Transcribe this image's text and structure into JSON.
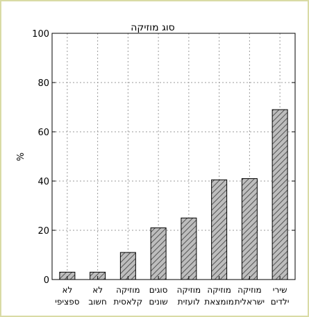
{
  "chart_data": {
    "type": "bar",
    "title": "סוג מוזיקה",
    "ylabel": "%",
    "xlabel": "",
    "ylim": [
      0,
      100
    ],
    "yticks": [
      0,
      20,
      40,
      60,
      80,
      100
    ],
    "grid": true,
    "categories": [
      [
        "לא",
        "ספציפי"
      ],
      [
        "לא",
        "חשוב"
      ],
      [
        "מוזיקה",
        "קלאסית"
      ],
      [
        "סוגים",
        "שונים"
      ],
      [
        "מוזיקה",
        "לועזית"
      ],
      [
        "מוזיקה",
        "מומצאת"
      ],
      [
        "מוזיקה",
        "ישראלית"
      ],
      [
        "שירי",
        "ילדים"
      ]
    ],
    "values": [
      3,
      3,
      11,
      21,
      25,
      40.5,
      41,
      69
    ],
    "colors": {
      "bar_fill": "#bdbdbd",
      "hatch": "#555555",
      "frame_border": "#d9dba5"
    }
  }
}
